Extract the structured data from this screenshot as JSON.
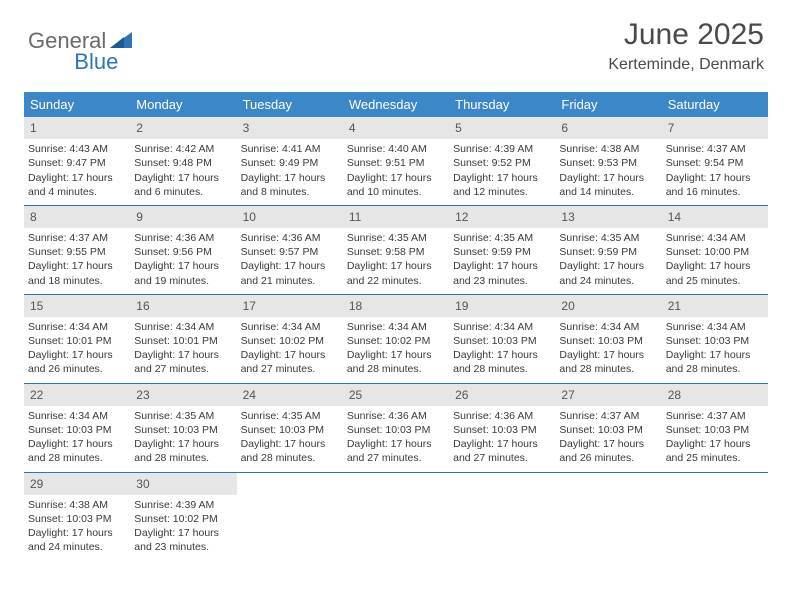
{
  "brand": {
    "part1": "General",
    "part2": "Blue"
  },
  "header": {
    "title": "June 2025",
    "location": "Kerteminde, Denmark"
  },
  "colors": {
    "header_bar": "#3b87c8",
    "rule": "#2f74b5",
    "daynum_bg": "#e6e6e6",
    "logo_gray": "#6a6a6a",
    "logo_blue": "#2f74b5"
  },
  "weekdays": [
    "Sunday",
    "Monday",
    "Tuesday",
    "Wednesday",
    "Thursday",
    "Friday",
    "Saturday"
  ],
  "days": [
    {
      "n": "1",
      "sr": "4:43 AM",
      "ss": "9:47 PM",
      "dl": "17 hours and 4 minutes."
    },
    {
      "n": "2",
      "sr": "4:42 AM",
      "ss": "9:48 PM",
      "dl": "17 hours and 6 minutes."
    },
    {
      "n": "3",
      "sr": "4:41 AM",
      "ss": "9:49 PM",
      "dl": "17 hours and 8 minutes."
    },
    {
      "n": "4",
      "sr": "4:40 AM",
      "ss": "9:51 PM",
      "dl": "17 hours and 10 minutes."
    },
    {
      "n": "5",
      "sr": "4:39 AM",
      "ss": "9:52 PM",
      "dl": "17 hours and 12 minutes."
    },
    {
      "n": "6",
      "sr": "4:38 AM",
      "ss": "9:53 PM",
      "dl": "17 hours and 14 minutes."
    },
    {
      "n": "7",
      "sr": "4:37 AM",
      "ss": "9:54 PM",
      "dl": "17 hours and 16 minutes."
    },
    {
      "n": "8",
      "sr": "4:37 AM",
      "ss": "9:55 PM",
      "dl": "17 hours and 18 minutes."
    },
    {
      "n": "9",
      "sr": "4:36 AM",
      "ss": "9:56 PM",
      "dl": "17 hours and 19 minutes."
    },
    {
      "n": "10",
      "sr": "4:36 AM",
      "ss": "9:57 PM",
      "dl": "17 hours and 21 minutes."
    },
    {
      "n": "11",
      "sr": "4:35 AM",
      "ss": "9:58 PM",
      "dl": "17 hours and 22 minutes."
    },
    {
      "n": "12",
      "sr": "4:35 AM",
      "ss": "9:59 PM",
      "dl": "17 hours and 23 minutes."
    },
    {
      "n": "13",
      "sr": "4:35 AM",
      "ss": "9:59 PM",
      "dl": "17 hours and 24 minutes."
    },
    {
      "n": "14",
      "sr": "4:34 AM",
      "ss": "10:00 PM",
      "dl": "17 hours and 25 minutes."
    },
    {
      "n": "15",
      "sr": "4:34 AM",
      "ss": "10:01 PM",
      "dl": "17 hours and 26 minutes."
    },
    {
      "n": "16",
      "sr": "4:34 AM",
      "ss": "10:01 PM",
      "dl": "17 hours and 27 minutes."
    },
    {
      "n": "17",
      "sr": "4:34 AM",
      "ss": "10:02 PM",
      "dl": "17 hours and 27 minutes."
    },
    {
      "n": "18",
      "sr": "4:34 AM",
      "ss": "10:02 PM",
      "dl": "17 hours and 28 minutes."
    },
    {
      "n": "19",
      "sr": "4:34 AM",
      "ss": "10:03 PM",
      "dl": "17 hours and 28 minutes."
    },
    {
      "n": "20",
      "sr": "4:34 AM",
      "ss": "10:03 PM",
      "dl": "17 hours and 28 minutes."
    },
    {
      "n": "21",
      "sr": "4:34 AM",
      "ss": "10:03 PM",
      "dl": "17 hours and 28 minutes."
    },
    {
      "n": "22",
      "sr": "4:34 AM",
      "ss": "10:03 PM",
      "dl": "17 hours and 28 minutes."
    },
    {
      "n": "23",
      "sr": "4:35 AM",
      "ss": "10:03 PM",
      "dl": "17 hours and 28 minutes."
    },
    {
      "n": "24",
      "sr": "4:35 AM",
      "ss": "10:03 PM",
      "dl": "17 hours and 28 minutes."
    },
    {
      "n": "25",
      "sr": "4:36 AM",
      "ss": "10:03 PM",
      "dl": "17 hours and 27 minutes."
    },
    {
      "n": "26",
      "sr": "4:36 AM",
      "ss": "10:03 PM",
      "dl": "17 hours and 27 minutes."
    },
    {
      "n": "27",
      "sr": "4:37 AM",
      "ss": "10:03 PM",
      "dl": "17 hours and 26 minutes."
    },
    {
      "n": "28",
      "sr": "4:37 AM",
      "ss": "10:03 PM",
      "dl": "17 hours and 25 minutes."
    },
    {
      "n": "29",
      "sr": "4:38 AM",
      "ss": "10:03 PM",
      "dl": "17 hours and 24 minutes."
    },
    {
      "n": "30",
      "sr": "4:39 AM",
      "ss": "10:02 PM",
      "dl": "17 hours and 23 minutes."
    }
  ],
  "labels": {
    "sunrise": "Sunrise: ",
    "sunset": "Sunset: ",
    "daylight": "Daylight: "
  }
}
